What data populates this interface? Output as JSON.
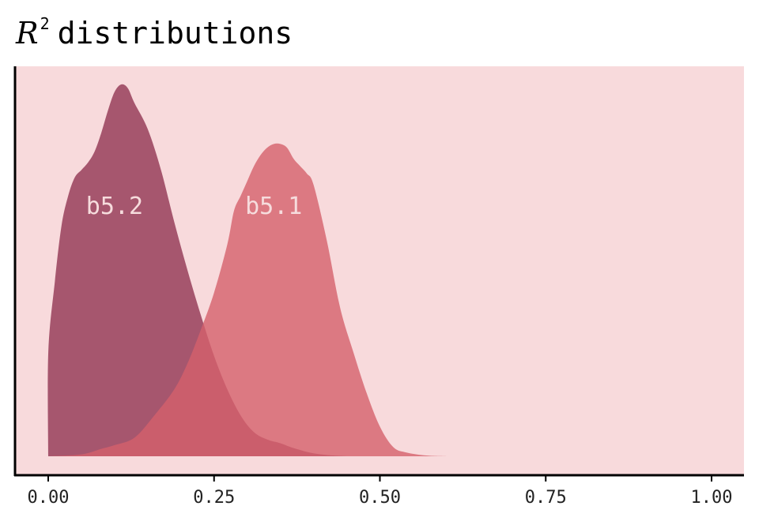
{
  "chart_data": {
    "type": "area",
    "title_symbol": "R",
    "title_superscript": "2",
    "title_text": "distributions",
    "xlim": [
      0,
      1
    ],
    "x_ticks": [
      "0.00",
      "0.25",
      "0.50",
      "0.75",
      "1.00"
    ],
    "x_tick_values": [
      0,
      0.25,
      0.5,
      0.75,
      1.0
    ],
    "y_axis_visible": false,
    "grid": false,
    "legend": "direct labels",
    "background_color": "#f8dadc",
    "series": [
      {
        "name": "b5.2",
        "color": "#8b2a4a",
        "opacity": 0.75,
        "x": [
          0.0,
          0.0001,
          0.01,
          0.02,
          0.03,
          0.04,
          0.05,
          0.06,
          0.07,
          0.08,
          0.09,
          0.1,
          0.11,
          0.12,
          0.13,
          0.15,
          0.17,
          0.19,
          0.21,
          0.23,
          0.25,
          0.27,
          0.29,
          0.31,
          0.33,
          0.35,
          0.37,
          0.4,
          0.43,
          0.45
        ],
        "y": [
          0.0,
          0.28,
          0.47,
          0.62,
          0.7,
          0.75,
          0.77,
          0.79,
          0.82,
          0.87,
          0.93,
          0.98,
          1.0,
          0.99,
          0.95,
          0.88,
          0.77,
          0.63,
          0.5,
          0.38,
          0.27,
          0.18,
          0.11,
          0.065,
          0.045,
          0.035,
          0.022,
          0.008,
          0.002,
          0.0
        ]
      },
      {
        "name": "b5.1",
        "color": "#d4606b",
        "opacity": 0.8,
        "x": [
          0.0,
          0.05,
          0.08,
          0.1,
          0.13,
          0.16,
          0.19,
          0.21,
          0.23,
          0.25,
          0.27,
          0.28,
          0.29,
          0.3,
          0.31,
          0.32,
          0.33,
          0.34,
          0.35,
          0.36,
          0.37,
          0.38,
          0.39,
          0.4,
          0.42,
          0.44,
          0.46,
          0.48,
          0.5,
          0.52,
          0.54,
          0.57,
          0.6
        ],
        "y": [
          0.0,
          0.005,
          0.02,
          0.03,
          0.05,
          0.11,
          0.18,
          0.25,
          0.34,
          0.44,
          0.57,
          0.66,
          0.7,
          0.74,
          0.78,
          0.81,
          0.83,
          0.84,
          0.84,
          0.83,
          0.8,
          0.78,
          0.76,
          0.73,
          0.58,
          0.4,
          0.28,
          0.17,
          0.08,
          0.025,
          0.01,
          0.002,
          0.0
        ]
      }
    ],
    "series_labels": [
      {
        "name": "b5.2",
        "x": 0.1,
        "y": 0.67
      },
      {
        "name": "b5.1",
        "x": 0.34,
        "y": 0.67
      }
    ]
  }
}
